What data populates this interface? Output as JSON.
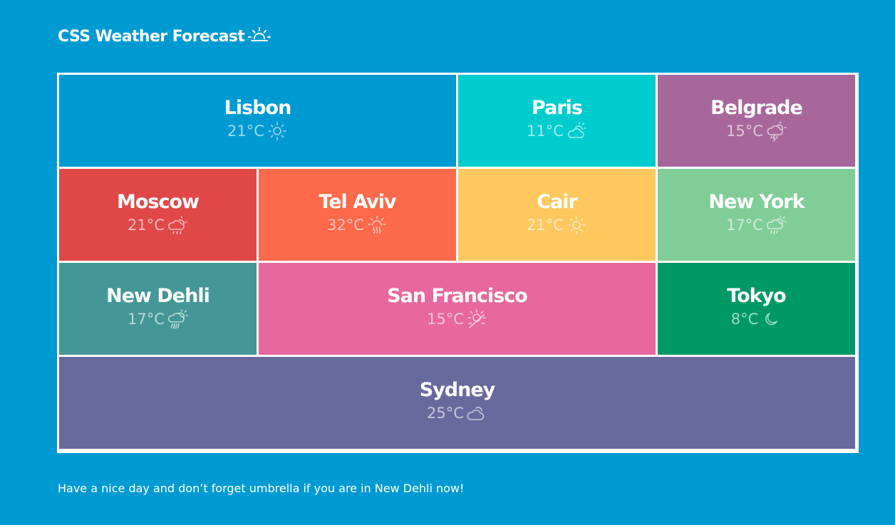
{
  "header": {
    "title": "CSS Weather Forecast",
    "icon": "sunrise-icon"
  },
  "tiles": [
    {
      "city": "Lisbon",
      "temp": "21°C",
      "icon": "sun-icon",
      "color": "#009ad3"
    },
    {
      "city": "Paris",
      "temp": "11°C",
      "icon": "partly-cloudy-icon",
      "color": "#00ccce"
    },
    {
      "city": "Belgrade",
      "temp": "15°C",
      "icon": "thunderstorm-icon",
      "color": "#a8679b"
    },
    {
      "city": "Moscow",
      "temp": "21°C",
      "icon": "cloudy-rain-icon",
      "color": "#e04848"
    },
    {
      "city": "Tel Aviv",
      "temp": "32°C",
      "icon": "hot-sun-icon",
      "color": "#fd694b"
    },
    {
      "city": "Cair",
      "temp": "21°C",
      "icon": "sun-icon",
      "color": "#fec85f"
    },
    {
      "city": "New York",
      "temp": "17°C",
      "icon": "sun-cloud-rain-icon",
      "color": "#80cd98"
    },
    {
      "city": "New Dehli",
      "temp": "17°C",
      "icon": "heavy-rain-icon",
      "color": "#459797"
    },
    {
      "city": "San Francisco",
      "temp": "15°C",
      "icon": "fog-sun-icon",
      "color": "#e7679e"
    },
    {
      "city": "Tokyo",
      "temp": "8°C",
      "icon": "moon-icon",
      "color": "#009966"
    },
    {
      "city": "Sydney",
      "temp": "25°C",
      "icon": "cloudy-icon",
      "color": "#686a9e"
    }
  ],
  "footer": {
    "message": "Have a nice day and don’t forget umbrella if you are in New Dehli now!"
  }
}
